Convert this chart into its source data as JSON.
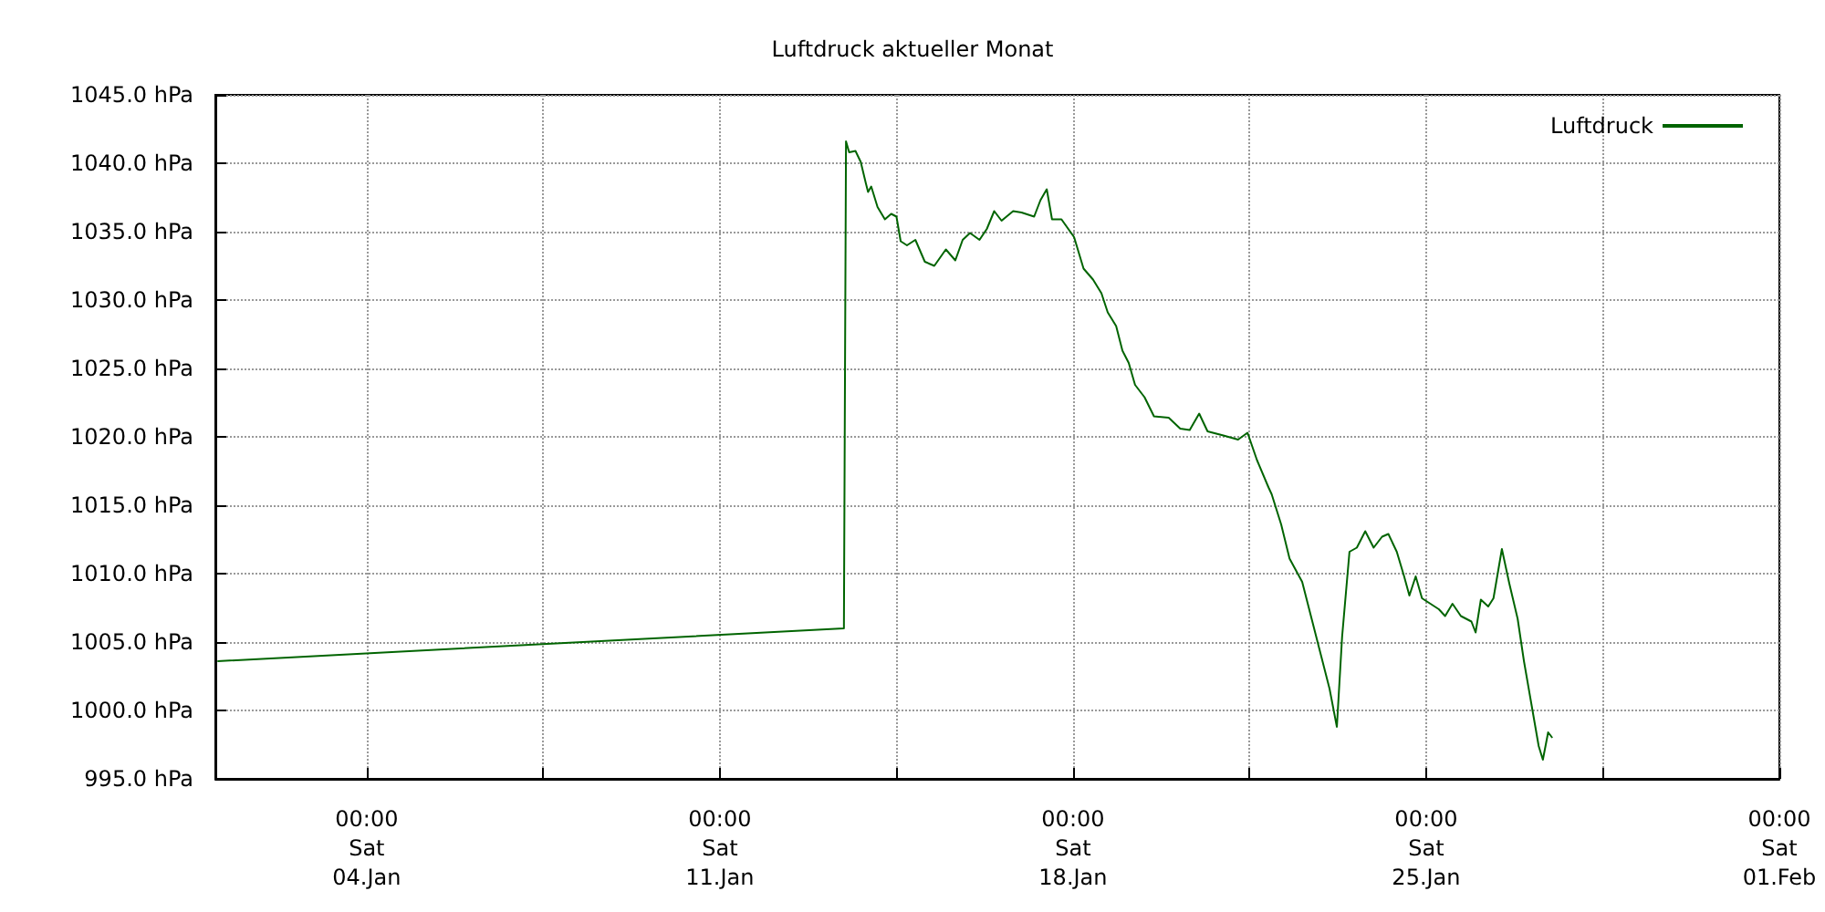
{
  "chart_data": {
    "type": "line",
    "title": "Luftdruck aktueller Monat",
    "legend": "top right",
    "grid": true,
    "marker": "none",
    "line_style": "solid",
    "xlim": [
      "--01-01",
      "--02-01"
    ],
    "xticks": [
      {
        "value": "--01-04",
        "label": "00:00\nSat\n04.Jan"
      },
      {
        "value": "--01-07T12:00",
        "label": null
      },
      {
        "value": "--01-11",
        "label": "00:00\nSat\n11.Jan"
      },
      {
        "value": "--01-14T12:00",
        "label": null
      },
      {
        "value": "--01-18",
        "label": "00:00\nSat\n18.Jan"
      },
      {
        "value": "--01-21T12:00",
        "label": null
      },
      {
        "value": "--01-25",
        "label": "00:00\nSat\n25.Jan"
      },
      {
        "value": "--01-28T12:00",
        "label": null
      },
      {
        "value": "--02-01",
        "label": "00:00\nSat\n01.Feb"
      }
    ],
    "ylim": [
      995,
      1045
    ],
    "yticks": [
      {
        "value": 995,
        "label": "995.0 hPa"
      },
      {
        "value": 1000,
        "label": "1000.0 hPa"
      },
      {
        "value": 1005,
        "label": "1005.0 hPa"
      },
      {
        "value": 1010,
        "label": "1010.0 hPa"
      },
      {
        "value": 1015,
        "label": "1015.0 hPa"
      },
      {
        "value": 1020,
        "label": "1020.0 hPa"
      },
      {
        "value": 1025,
        "label": "1025.0 hPa"
      },
      {
        "value": 1030,
        "label": "1030.0 hPa"
      },
      {
        "value": 1035,
        "label": "1035.0 hPa"
      },
      {
        "value": 1040,
        "label": "1040.0 hPa"
      },
      {
        "value": 1045,
        "label": "1045.0 hPa"
      }
    ],
    "series": [
      {
        "name": "Luftdruck",
        "color": "#006400",
        "x": [
          "--01-01T01:00",
          "--01-13T11:00",
          "--01-13T12:00",
          "--01-13T13:30",
          "--01-13T16:30",
          "--01-13T19:00",
          "--01-13T21:30",
          "--01-13T22:30",
          "--01-14T00:00",
          "--01-14T03:00",
          "--01-14T06:30",
          "--01-14T09:30",
          "--01-14T12:00",
          "--01-14T14:00",
          "--01-14T17:00",
          "--01-14T21:00",
          "--01-15T01:30",
          "--01-15T06:00",
          "--01-15T11:30",
          "--01-15T16:00",
          "--01-15T19:30",
          "--01-15T23:00",
          "--01-16T03:30",
          "--01-16T07:00",
          "--01-16T10:30",
          "--01-16T14:00",
          "--01-16T19:30",
          "--01-16T23:30",
          "--01-17T05:30",
          "--01-17T08:30",
          "--01-17T11:30",
          "--01-17T14:00",
          "--01-17T18:30",
          "--01-18T00:30",
          "--01-18T05:00",
          "--01-18T09:30",
          "--01-18T13:30",
          "--01-18T16:30",
          "--01-18T20:30",
          "--01-18T23:30",
          "--01-19T02:30",
          "--01-19T05:30",
          "--01-19T10:00",
          "--01-19T14:30",
          "--01-19T21:30",
          "--01-20T03:00",
          "--01-20T07:30",
          "--01-20T12:00",
          "--01-20T16:00",
          "--01-20T23:30",
          "--01-21T06:30",
          "--01-21T11:00",
          "--01-21T15:30",
          "--01-21T21:00",
          "--01-21T22:30",
          "--01-22T03:00",
          "--01-22T07:00",
          "--01-22T13:00",
          "--01-22T17:30",
          "--01-22T22:00",
          "--01-23T02:00",
          "--01-23T05:30",
          "--01-23T08:00",
          "--01-23T11:30",
          "--01-23T15:00",
          "--01-23T19:00",
          "--01-23T23:00",
          "--01-24T03:00",
          "--01-24T06:00",
          "--01-24T10:00",
          "--01-24T13:30",
          "--01-24T16:00",
          "--01-24T19:00",
          "--01-24T22:00",
          "--01-25T02:00",
          "--01-25T06:00",
          "--01-25T09:00",
          "--01-25T12:30",
          "--01-25T16:30",
          "--01-25T21:30",
          "--01-25T23:30",
          "--01-26T02:00",
          "--01-26T05:30",
          "--01-26T08:00",
          "--01-26T12:00",
          "--01-26T15:30",
          "--01-26T19:30",
          "--01-26T22:30",
          "--01-27T02:00",
          "--01-27T05:30",
          "--01-27T07:30",
          "--01-27T10:00",
          "--01-27T12:00"
        ],
        "values": [
          1003.6,
          1006.0,
          1041.6,
          1040.8,
          1040.9,
          1040.1,
          1038.5,
          1037.9,
          1038.3,
          1036.8,
          1035.9,
          1036.3,
          1036.1,
          1034.3,
          1034.0,
          1034.4,
          1032.8,
          1032.5,
          1033.7,
          1032.9,
          1034.4,
          1034.9,
          1034.4,
          1035.2,
          1036.5,
          1035.8,
          1036.5,
          1036.4,
          1036.1,
          1037.3,
          1038.1,
          1035.9,
          1035.9,
          1034.6,
          1032.3,
          1031.5,
          1030.5,
          1029.1,
          1028.1,
          1026.3,
          1025.4,
          1023.8,
          1022.9,
          1021.5,
          1021.4,
          1020.6,
          1020.5,
          1021.7,
          1020.4,
          1020.1,
          1019.8,
          1020.3,
          1018.3,
          1016.3,
          1015.8,
          1013.6,
          1011.1,
          1009.4,
          1006.7,
          1004.0,
          1001.6,
          998.8,
          1005.4,
          1011.6,
          1011.9,
          1013.1,
          1011.9,
          1012.7,
          1012.9,
          1011.6,
          1009.8,
          1008.4,
          1009.8,
          1008.2,
          1007.8,
          1007.4,
          1006.9,
          1007.8,
          1006.9,
          1006.5,
          1005.7,
          1008.1,
          1007.6,
          1008.2,
          1011.8,
          1009.3,
          1006.7,
          1003.6,
          1000.5,
          997.4,
          996.4,
          998.4,
          998.0
        ]
      }
    ]
  }
}
